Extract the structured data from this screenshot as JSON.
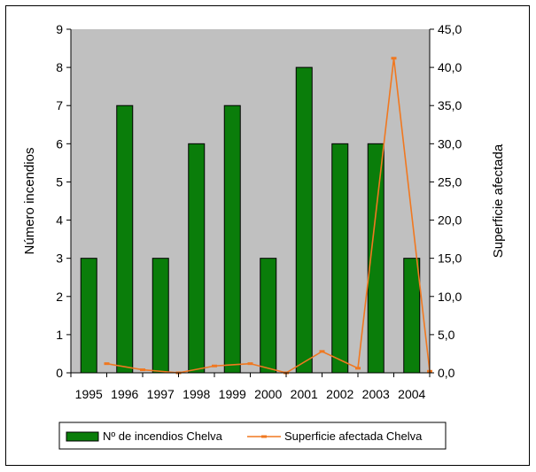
{
  "chart_data": {
    "type": "bar",
    "categories": [
      "1995",
      "1996",
      "1997",
      "1998",
      "1999",
      "2000",
      "2001",
      "2002",
      "2003",
      "2004"
    ],
    "series": [
      {
        "name": "Nº de incendios Chelva",
        "type": "bar",
        "axis": "left",
        "values": [
          3,
          7,
          3,
          6,
          7,
          3,
          8,
          6,
          6,
          3
        ],
        "color": "#0a7d0a"
      },
      {
        "name": "Superficie afectada Chelva",
        "type": "line",
        "axis": "right",
        "values": [
          1.2,
          0.4,
          0.0,
          0.9,
          1.2,
          0.0,
          2.8,
          0.6,
          41.2,
          0.2
        ],
        "color": "#f07820"
      }
    ],
    "ylabel": "Número incendios",
    "y2label": "Superficie afectada",
    "ylim": [
      0,
      9
    ],
    "y2lim": [
      0,
      45
    ],
    "yticks": [
      "0",
      "1",
      "2",
      "3",
      "4",
      "5",
      "6",
      "7",
      "8",
      "9"
    ],
    "y2ticks": [
      "0,0",
      "5,0",
      "10,0",
      "15,0",
      "20,0",
      "25,0",
      "30,0",
      "35,0",
      "40,0",
      "45,0"
    ],
    "grid": false,
    "plot_background": "#c0c0c0",
    "legend": "bottom"
  }
}
